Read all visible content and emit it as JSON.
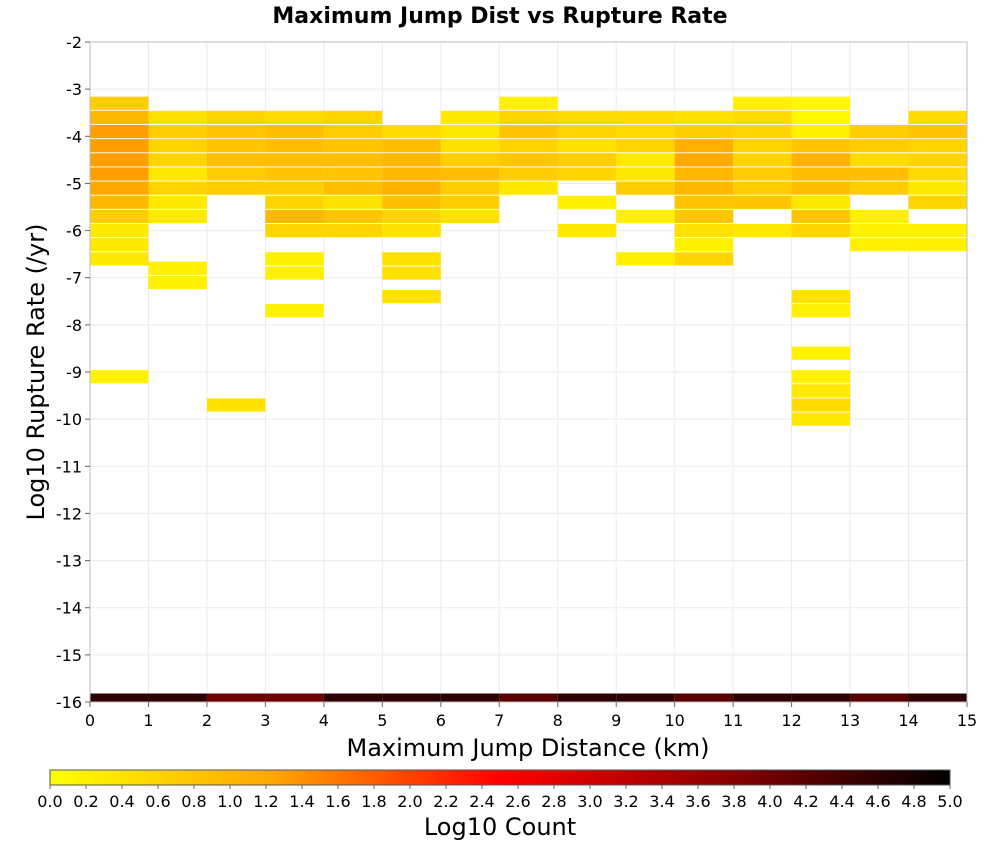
{
  "chart_data": {
    "type": "heatmap",
    "title": "Maximum Jump Dist vs Rupture Rate",
    "xlabel": "Maximum Jump Distance (km)",
    "ylabel": "Log10 Rupture Rate (/yr)",
    "xlim": [
      0,
      15
    ],
    "ylim": [
      -16,
      -2
    ],
    "x_ticks": [
      "0",
      "1",
      "2",
      "3",
      "4",
      "5",
      "6",
      "7",
      "8",
      "9",
      "10",
      "11",
      "12",
      "13",
      "14",
      "15"
    ],
    "y_ticks": [
      "-2",
      "-3",
      "-4",
      "-5",
      "-6",
      "-7",
      "-8",
      "-9",
      "-10",
      "-11",
      "-12",
      "-13",
      "-14",
      "-15",
      "-16"
    ],
    "bin_width_x": 1,
    "bin_height_y": 0.28,
    "grid": true,
    "colorbar": {
      "label": "Log10 Count",
      "range": [
        0,
        5
      ],
      "ticks": [
        "0.0",
        "0.2",
        "0.4",
        "0.6",
        "0.8",
        "1.0",
        "1.2",
        "1.4",
        "1.6",
        "1.8",
        "2.0",
        "2.2",
        "2.4",
        "2.6",
        "2.8",
        "3.0",
        "3.2",
        "3.4",
        "3.6",
        "3.8",
        "4.0",
        "4.2",
        "4.4",
        "4.6",
        "4.8",
        "5.0"
      ],
      "colormap": [
        "#ffff00",
        "#ffa500",
        "#ff0000",
        "#8b0000",
        "#000000"
      ]
    },
    "columns": [
      {
        "x": 0,
        "bottom_value": 4.6,
        "cells": [
          [
            -3.3,
            0.7
          ],
          [
            -3.6,
            1.0
          ],
          [
            -3.9,
            1.3
          ],
          [
            -4.2,
            1.3
          ],
          [
            -4.5,
            1.3
          ],
          [
            -4.8,
            1.3
          ],
          [
            -5.1,
            1.2
          ],
          [
            -5.4,
            1.0
          ],
          [
            -5.7,
            0.7
          ],
          [
            -6.0,
            0.3
          ],
          [
            -6.3,
            0.3
          ],
          [
            -6.6,
            0.3
          ],
          [
            -9.1,
            0.2
          ]
        ]
      },
      {
        "x": 1,
        "bottom_value": 4.6,
        "cells": [
          [
            -3.6,
            0.4
          ],
          [
            -3.9,
            0.7
          ],
          [
            -4.2,
            0.6
          ],
          [
            -4.5,
            0.6
          ],
          [
            -4.8,
            0.3
          ],
          [
            -5.1,
            0.6
          ],
          [
            -5.4,
            0.3
          ],
          [
            -5.7,
            0.3
          ],
          [
            -6.8,
            0.2
          ],
          [
            -7.1,
            0.2
          ]
        ]
      },
      {
        "x": 2,
        "bottom_value": 4.0,
        "cells": [
          [
            -3.6,
            0.6
          ],
          [
            -3.9,
            0.8
          ],
          [
            -4.2,
            0.8
          ],
          [
            -4.5,
            0.9
          ],
          [
            -4.8,
            0.7
          ],
          [
            -5.1,
            0.7
          ],
          [
            -9.7,
            0.4
          ]
        ]
      },
      {
        "x": 3,
        "bottom_value": 4.0,
        "cells": [
          [
            -3.6,
            0.5
          ],
          [
            -3.9,
            0.9
          ],
          [
            -4.2,
            0.9
          ],
          [
            -4.5,
            0.9
          ],
          [
            -4.8,
            0.8
          ],
          [
            -5.1,
            0.7
          ],
          [
            -5.4,
            0.6
          ],
          [
            -5.7,
            1.0
          ],
          [
            -6.0,
            0.6
          ],
          [
            -6.6,
            0.2
          ],
          [
            -6.9,
            0.2
          ],
          [
            -7.7,
            0.2
          ]
        ]
      },
      {
        "x": 4,
        "bottom_value": 4.6,
        "cells": [
          [
            -3.6,
            0.6
          ],
          [
            -3.9,
            0.7
          ],
          [
            -4.2,
            0.8
          ],
          [
            -4.5,
            0.9
          ],
          [
            -4.8,
            0.8
          ],
          [
            -5.1,
            0.9
          ],
          [
            -5.4,
            0.4
          ],
          [
            -5.7,
            0.8
          ],
          [
            -6.0,
            0.6
          ]
        ]
      },
      {
        "x": 5,
        "bottom_value": 4.6,
        "cells": [
          [
            -3.9,
            0.5
          ],
          [
            -4.2,
            0.9
          ],
          [
            -4.5,
            1.0
          ],
          [
            -4.8,
            1.0
          ],
          [
            -5.1,
            1.1
          ],
          [
            -5.4,
            0.9
          ],
          [
            -5.7,
            0.6
          ],
          [
            -6.0,
            0.4
          ],
          [
            -6.6,
            0.4
          ],
          [
            -6.9,
            0.4
          ],
          [
            -7.4,
            0.4
          ]
        ]
      },
      {
        "x": 6,
        "bottom_value": 4.6,
        "cells": [
          [
            -3.6,
            0.3
          ],
          [
            -3.9,
            0.3
          ],
          [
            -4.2,
            0.4
          ],
          [
            -4.5,
            0.7
          ],
          [
            -4.8,
            0.9
          ],
          [
            -5.1,
            0.7
          ],
          [
            -5.4,
            0.7
          ],
          [
            -5.7,
            0.4
          ]
        ]
      },
      {
        "x": 7,
        "bottom_value": 4.2,
        "cells": [
          [
            -3.3,
            0.2
          ],
          [
            -3.6,
            0.6
          ],
          [
            -3.9,
            0.8
          ],
          [
            -4.2,
            0.6
          ],
          [
            -4.5,
            0.8
          ],
          [
            -4.8,
            0.7
          ],
          [
            -5.1,
            0.3
          ]
        ]
      },
      {
        "x": 8,
        "bottom_value": 4.6,
        "cells": [
          [
            -3.6,
            0.5
          ],
          [
            -3.9,
            0.6
          ],
          [
            -4.2,
            0.4
          ],
          [
            -4.5,
            0.7
          ],
          [
            -4.8,
            0.6
          ],
          [
            -5.4,
            0.2
          ],
          [
            -6.0,
            0.3
          ]
        ]
      },
      {
        "x": 9,
        "bottom_value": 4.6,
        "cells": [
          [
            -3.6,
            0.5
          ],
          [
            -3.9,
            0.5
          ],
          [
            -4.2,
            0.6
          ],
          [
            -4.5,
            0.3
          ],
          [
            -4.8,
            0.3
          ],
          [
            -5.1,
            0.7
          ],
          [
            -5.7,
            0.2
          ],
          [
            -6.6,
            0.2
          ]
        ]
      },
      {
        "x": 10,
        "bottom_value": 4.2,
        "cells": [
          [
            -3.6,
            0.4
          ],
          [
            -3.9,
            0.7
          ],
          [
            -4.2,
            1.1
          ],
          [
            -4.5,
            1.2
          ],
          [
            -4.8,
            1.0
          ],
          [
            -5.1,
            1.0
          ],
          [
            -5.4,
            0.8
          ],
          [
            -5.7,
            0.8
          ],
          [
            -6.0,
            0.4
          ],
          [
            -6.3,
            0.2
          ],
          [
            -6.6,
            0.6
          ]
        ]
      },
      {
        "x": 11,
        "bottom_value": 4.6,
        "cells": [
          [
            -3.3,
            0.2
          ],
          [
            -3.6,
            0.5
          ],
          [
            -3.9,
            0.6
          ],
          [
            -4.2,
            0.6
          ],
          [
            -4.5,
            0.6
          ],
          [
            -4.8,
            0.7
          ],
          [
            -5.1,
            0.7
          ],
          [
            -5.4,
            0.8
          ],
          [
            -6.0,
            0.3
          ]
        ]
      },
      {
        "x": 12,
        "bottom_value": 4.6,
        "cells": [
          [
            -3.3,
            0.1
          ],
          [
            -3.6,
            0.1
          ],
          [
            -3.9,
            0.2
          ],
          [
            -4.2,
            0.8
          ],
          [
            -4.5,
            1.1
          ],
          [
            -4.8,
            0.9
          ],
          [
            -5.1,
            0.9
          ],
          [
            -5.4,
            0.3
          ],
          [
            -5.7,
            0.8
          ],
          [
            -6.0,
            0.6
          ],
          [
            -7.4,
            0.4
          ],
          [
            -7.7,
            0.2
          ],
          [
            -8.6,
            0.2
          ],
          [
            -9.1,
            0.2
          ],
          [
            -9.4,
            0.3
          ],
          [
            -9.7,
            0.5
          ],
          [
            -10.0,
            0.3
          ]
        ]
      },
      {
        "x": 13,
        "bottom_value": 4.2,
        "cells": [
          [
            -3.9,
            0.7
          ],
          [
            -4.2,
            0.7
          ],
          [
            -4.5,
            0.5
          ],
          [
            -4.8,
            0.9
          ],
          [
            -5.1,
            0.7
          ],
          [
            -5.7,
            0.2
          ],
          [
            -6.0,
            0.2
          ],
          [
            -6.3,
            0.2
          ]
        ]
      },
      {
        "x": 14,
        "bottom_value": 4.6,
        "cells": [
          [
            -3.6,
            0.5
          ],
          [
            -3.9,
            0.8
          ],
          [
            -4.2,
            0.6
          ],
          [
            -4.5,
            0.6
          ],
          [
            -4.8,
            0.5
          ],
          [
            -5.1,
            0.3
          ],
          [
            -5.4,
            0.6
          ],
          [
            -6.0,
            0.2
          ],
          [
            -6.3,
            0.2
          ]
        ]
      }
    ]
  }
}
